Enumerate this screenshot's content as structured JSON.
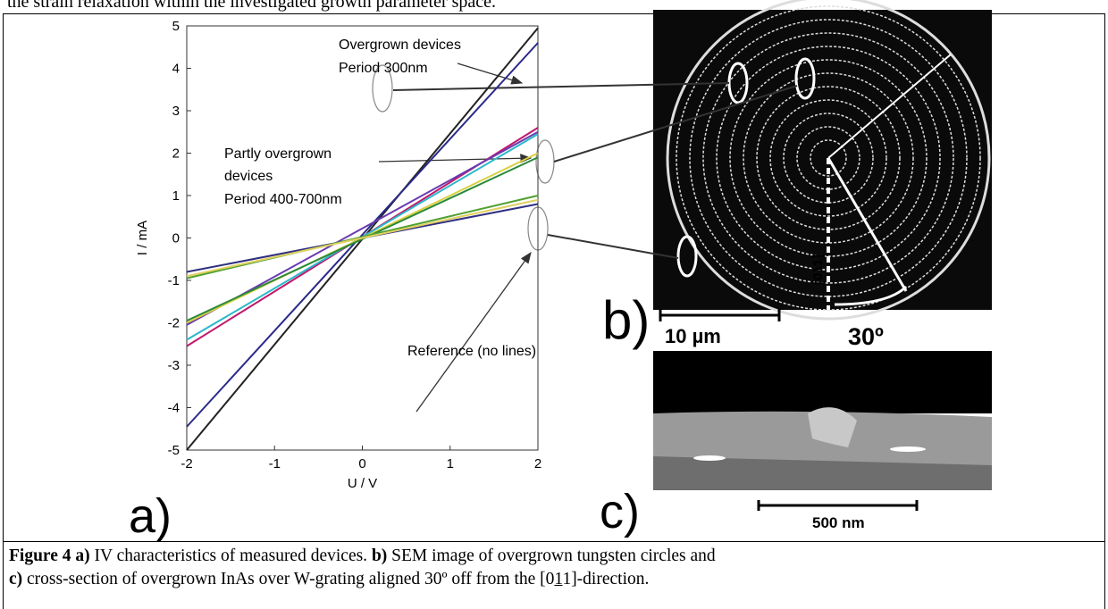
{
  "header_text": "the strain relaxation within the investigated growth parameter space.",
  "chart_data": {
    "type": "line",
    "xlabel": "U / V",
    "ylabel": "I / mA",
    "x": [
      -2,
      2
    ],
    "xlim": [
      -2,
      2
    ],
    "xticks": [
      -2,
      -1,
      0,
      1,
      2
    ],
    "ylim": [
      -5,
      5
    ],
    "yticks": [
      -5,
      -4,
      -3,
      -2,
      -1,
      0,
      1,
      2,
      3,
      4,
      5
    ],
    "series": [
      {
        "color": "#222222",
        "values": [
          -5.0,
          4.95
        ]
      },
      {
        "color": "#2a2a8a",
        "values": [
          -4.45,
          4.6
        ]
      },
      {
        "color": "#c0186a",
        "values": [
          -2.55,
          2.6
        ]
      },
      {
        "color": "#2bb8c8",
        "values": [
          -2.4,
          2.45
        ]
      },
      {
        "color": "#6a3ab0",
        "values": [
          -2.05,
          2.5
        ]
      },
      {
        "color": "#d8d040",
        "values": [
          -2.0,
          2.0
        ]
      },
      {
        "color": "#2a8a3a",
        "values": [
          -1.95,
          1.9
        ]
      },
      {
        "color": "#303080",
        "values": [
          -0.8,
          0.8
        ]
      },
      {
        "color": "#50a030",
        "values": [
          -0.95,
          1.0
        ]
      },
      {
        "color": "#e0d060",
        "values": [
          -0.9,
          0.9
        ]
      }
    ],
    "annotations": [
      "Overgrown devices",
      "Period 300nm",
      "Partly overgrown",
      "devices",
      "Period 400-700nm",
      "Reference (no lines)"
    ]
  },
  "panels": {
    "a": "a)",
    "b": "b)",
    "c": "c)",
    "scale_b": "10 µm",
    "angle": "30º",
    "direction": "[011]",
    "scale_c": "500 nm"
  },
  "caption": [
    "Figure 4 a)",
    " IV characteristics of measured devices. ",
    "b)",
    " SEM image of overgrown tungsten circles  and",
    "c)",
    " cross-section of overgrown InAs over W-grating aligned 30º off from the [0",
    "1",
    "1]-direction."
  ]
}
